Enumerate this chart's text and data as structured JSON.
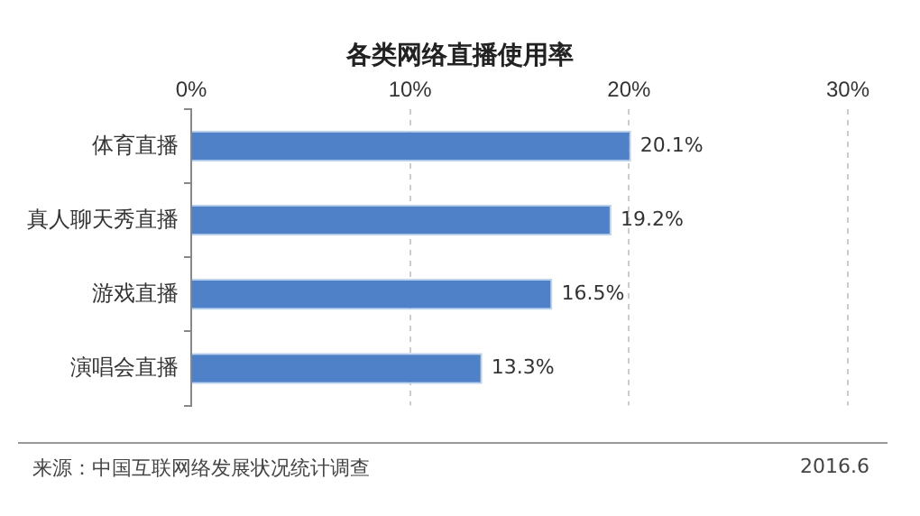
{
  "chart_data": {
    "type": "bar",
    "orientation": "horizontal",
    "title": "各类网络直播使用率",
    "categories": [
      "体育直播",
      "真人聊天秀直播",
      "游戏直播",
      "演唱会直播"
    ],
    "values": [
      20.1,
      19.2,
      16.5,
      13.3
    ],
    "value_labels": [
      "20.1%",
      "19.2%",
      "16.5%",
      "13.3%"
    ],
    "color": "#4f81c8",
    "xlim": [
      0,
      30
    ],
    "xticks": [
      {
        "value": 0,
        "label": "0%"
      },
      {
        "value": 10,
        "label": "10%"
      },
      {
        "value": 20,
        "label": "20%"
      },
      {
        "value": 30,
        "label": "30%"
      }
    ],
    "grid": "x",
    "legend": false,
    "annotations": [
      "来源：中国互联网络发展状况统计调查",
      "2016.6"
    ]
  }
}
